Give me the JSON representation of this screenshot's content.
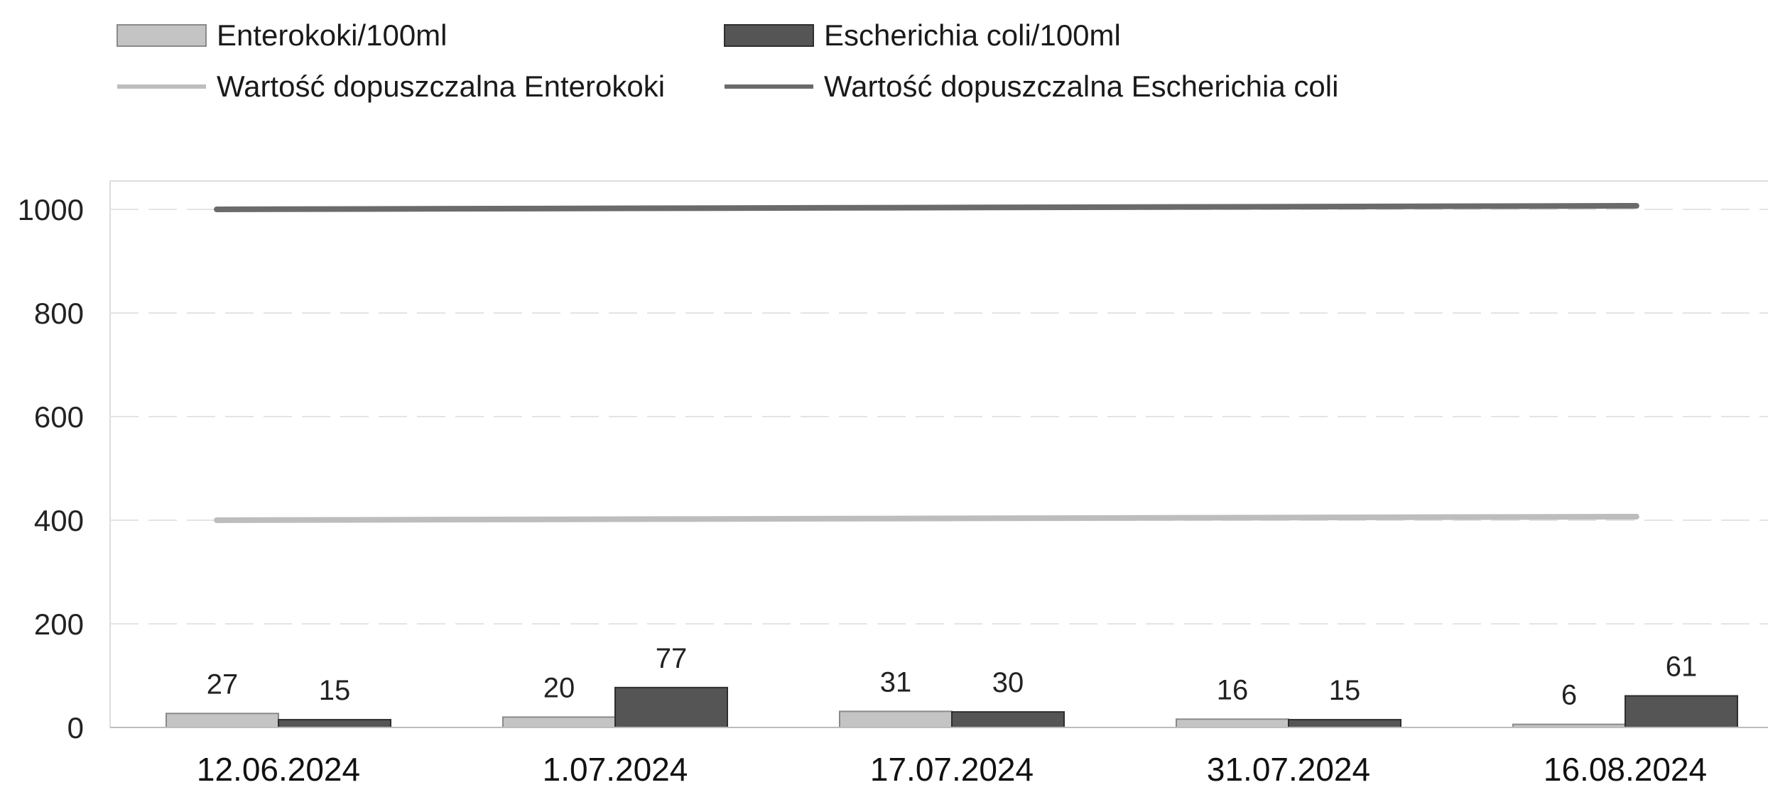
{
  "chart_data": {
    "type": "bar",
    "categories": [
      "12.06.2024",
      "1.07.2024",
      "17.07.2024",
      "31.07.2024",
      "16.08.2024"
    ],
    "series": [
      {
        "name": "Enterokoki/100ml",
        "values": [
          27,
          20,
          31,
          16,
          6
        ],
        "color": "#c4c4c4"
      },
      {
        "name": "Escherichia coli/100ml",
        "values": [
          15,
          77,
          30,
          15,
          61
        ],
        "color": "#555555"
      }
    ],
    "limit_lines": [
      {
        "name": "Wartość dopuszczalna Enterokoki",
        "value": 400,
        "color": "#bdbdbd"
      },
      {
        "name": "Wartość dopuszczalna Escherichia coli",
        "value": 1000,
        "color": "#6b6b6b"
      }
    ],
    "y_ticks": [
      0,
      200,
      400,
      600,
      800,
      1000
    ],
    "ylim": [
      0,
      1000
    ],
    "grid": true,
    "legend_position": "top-left",
    "title": "",
    "xlabel": "",
    "ylabel": ""
  }
}
